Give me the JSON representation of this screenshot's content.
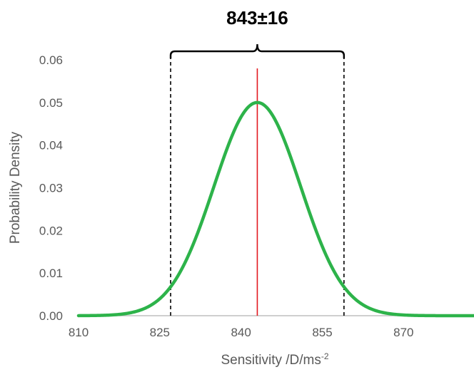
{
  "chart_data": {
    "type": "line",
    "title": "843±16",
    "xlabel": "Sensitivity /D/ms",
    "xlabel_superscript": "-2",
    "ylabel": "Probability Density",
    "xlim": [
      810,
      883
    ],
    "ylim": [
      0,
      0.06
    ],
    "x_ticks": [
      810,
      825,
      840,
      855,
      870
    ],
    "x_tick_labels": [
      "810",
      "825",
      "840",
      "855",
      "870"
    ],
    "y_ticks": [
      0,
      0.01,
      0.02,
      0.03,
      0.04,
      0.05,
      0.06
    ],
    "y_tick_labels": [
      "0.00",
      "0.01",
      "0.02",
      "0.03",
      "0.04",
      "0.05",
      "0.06"
    ],
    "grid": false,
    "series": [
      {
        "distribution": "normal",
        "mean": 843,
        "sd": 8,
        "peak": 0.05,
        "color": "#2db34a",
        "x": [
          810,
          813,
          816,
          819,
          822,
          825,
          827,
          829,
          831,
          833,
          835,
          837,
          839,
          841,
          843,
          845,
          847,
          849,
          851,
          853,
          855,
          857,
          859,
          861,
          864,
          867,
          870,
          873,
          876,
          879,
          883
        ],
        "y": [
          0.0,
          0.0001,
          0.0006,
          0.0018,
          0.0032,
          0.0066,
          0.0068,
          0.0108,
          0.0162,
          0.0229,
          0.0304,
          0.0377,
          0.0441,
          0.0485,
          0.05,
          0.0485,
          0.0441,
          0.0377,
          0.0304,
          0.0229,
          0.0162,
          0.0108,
          0.0068,
          0.004,
          0.0016,
          0.0005,
          0.0002,
          0.0,
          0.0,
          0.0,
          0.0
        ]
      }
    ],
    "annotations": {
      "mean_line": {
        "x": 843,
        "y_top": 0.058,
        "color": "#e3181f"
      },
      "interval_lines": {
        "x": [
          827,
          859
        ],
        "y_top": 0.061,
        "color": "#000000",
        "style": "dashed"
      },
      "bracket": {
        "x_start": 827,
        "x_end": 859,
        "label": "843±16"
      }
    },
    "colors": {
      "curve": "#2db34a",
      "mean_line": "#e3181f",
      "axis": "#bfbfbf",
      "text": "#595959"
    }
  }
}
